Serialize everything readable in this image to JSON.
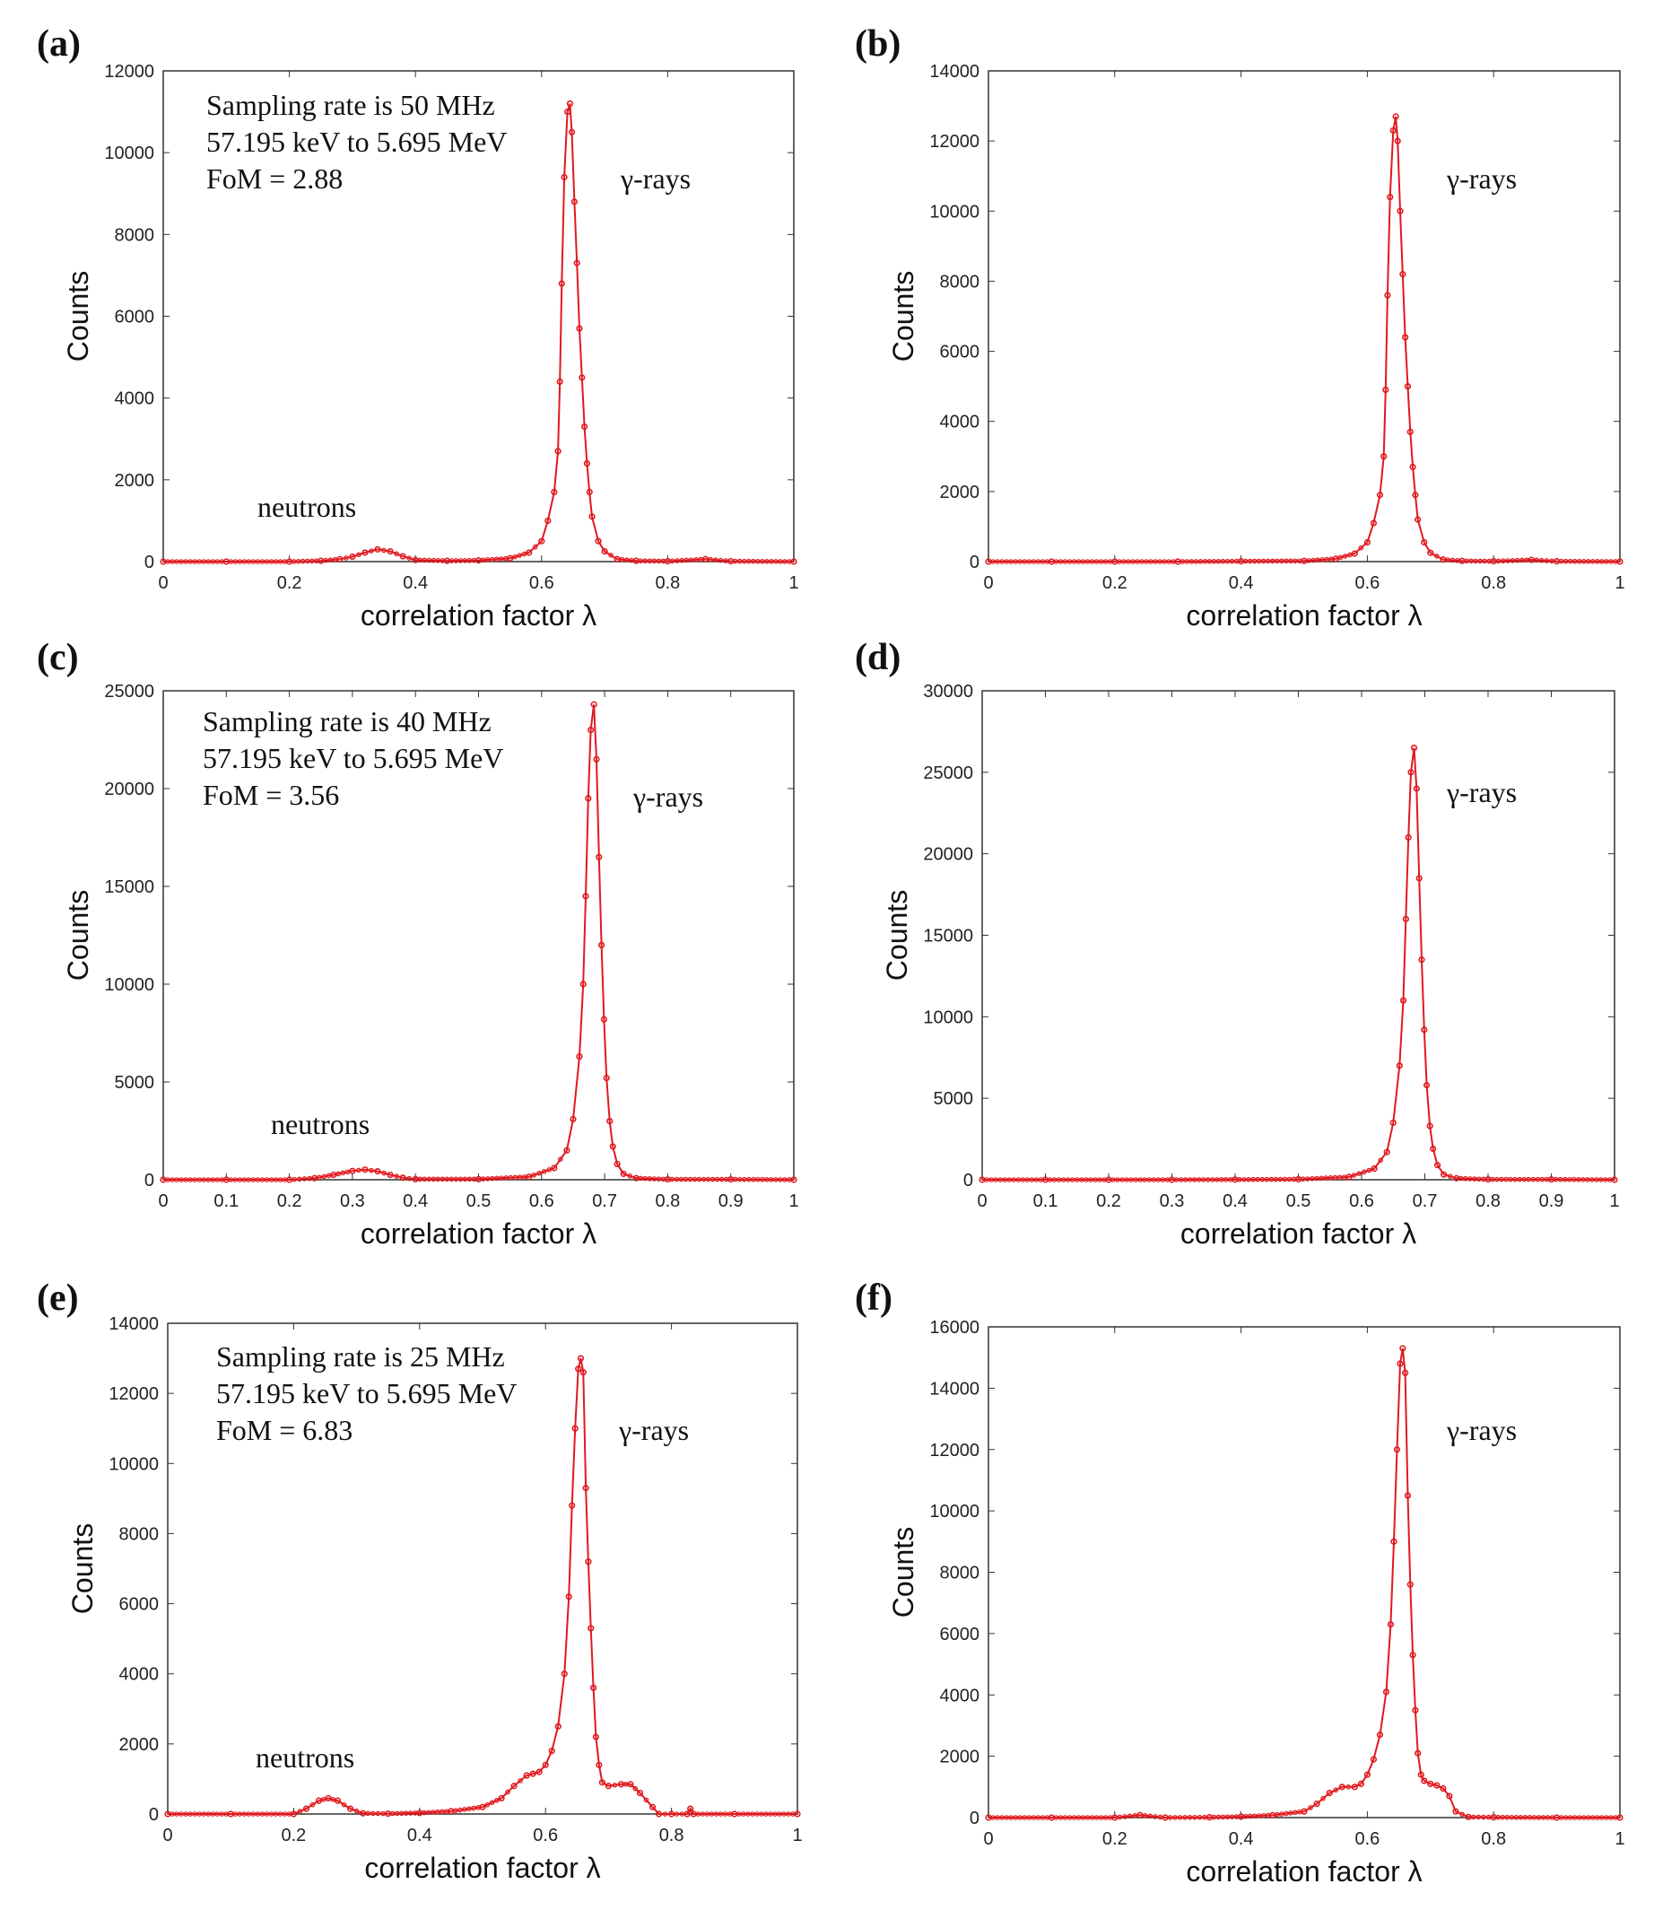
{
  "chart_data": [
    {
      "panel_label": "(a)",
      "type": "line",
      "xlabel": "correlation factor λ",
      "ylabel": "Counts",
      "xlim": [
        0,
        1
      ],
      "ylim": [
        0,
        12000
      ],
      "xticks": [
        "0",
        "0.2",
        "0.4",
        "0.6",
        "0.8",
        "1"
      ],
      "yticks": [
        "0",
        "2000",
        "4000",
        "6000",
        "8000",
        "10000",
        "12000"
      ],
      "annotations": {
        "info": [
          "Sampling rate is 50 MHz",
          "57.195 keV to 5.695 MeV",
          "FoM = 2.88"
        ],
        "neutrons": "neutrons",
        "gamma": "γ-rays"
      },
      "color": "#e0191e",
      "x": [
        0,
        0.1,
        0.2,
        0.25,
        0.28,
        0.3,
        0.32,
        0.34,
        0.36,
        0.38,
        0.4,
        0.45,
        0.5,
        0.55,
        0.58,
        0.6,
        0.61,
        0.62,
        0.626,
        0.629,
        0.632,
        0.636,
        0.641,
        0.645,
        0.648,
        0.652,
        0.656,
        0.66,
        0.664,
        0.668,
        0.672,
        0.676,
        0.68,
        0.69,
        0.7,
        0.72,
        0.75,
        0.8,
        0.86,
        0.9,
        1
      ],
      "y": [
        0,
        0,
        0,
        20,
        60,
        120,
        220,
        300,
        250,
        130,
        40,
        20,
        30,
        80,
        220,
        500,
        1000,
        1700,
        2700,
        4400,
        6800,
        9400,
        11000,
        11200,
        10500,
        8800,
        7300,
        5700,
        4500,
        3300,
        2400,
        1700,
        1100,
        500,
        250,
        60,
        20,
        10,
        60,
        10,
        0
      ]
    },
    {
      "panel_label": "(b)",
      "type": "line",
      "xlabel": "correlation factor λ",
      "ylabel": "Counts",
      "xlim": [
        0,
        1
      ],
      "ylim": [
        0,
        14000
      ],
      "xticks": [
        "0",
        "0.2",
        "0.4",
        "0.6",
        "0.8",
        "1"
      ],
      "yticks": [
        "0",
        "2000",
        "4000",
        "6000",
        "8000",
        "10000",
        "12000",
        "14000"
      ],
      "annotations": {
        "gamma": "γ-rays"
      },
      "color": "#e0191e",
      "x": [
        0,
        0.1,
        0.2,
        0.3,
        0.4,
        0.5,
        0.55,
        0.58,
        0.6,
        0.61,
        0.62,
        0.626,
        0.629,
        0.632,
        0.636,
        0.641,
        0.645,
        0.648,
        0.652,
        0.656,
        0.66,
        0.664,
        0.668,
        0.672,
        0.676,
        0.68,
        0.69,
        0.7,
        0.72,
        0.75,
        0.8,
        0.86,
        0.9,
        1
      ],
      "y": [
        0,
        0,
        0,
        0,
        10,
        20,
        80,
        230,
        550,
        1100,
        1900,
        3000,
        4900,
        7600,
        10400,
        12300,
        12700,
        12000,
        10000,
        8200,
        6400,
        5000,
        3700,
        2700,
        1900,
        1200,
        550,
        250,
        60,
        20,
        10,
        50,
        10,
        0
      ]
    },
    {
      "panel_label": "(c)",
      "type": "line",
      "xlabel": "correlation factor λ",
      "ylabel": "Counts",
      "xlim": [
        0,
        1
      ],
      "ylim": [
        0,
        25000
      ],
      "xticks": [
        "0",
        "0.1",
        "0.2",
        "0.3",
        "0.4",
        "0.5",
        "0.6",
        "0.7",
        "0.8",
        "0.9",
        "1"
      ],
      "yticks": [
        "0",
        "5000",
        "10000",
        "15000",
        "20000",
        "25000"
      ],
      "annotations": {
        "info": [
          "Sampling rate is 40 MHz",
          "57.195 keV to 5.695 MeV",
          "FoM = 3.56"
        ],
        "neutrons": "neutrons",
        "gamma": "γ-rays"
      },
      "color": "#e0191e",
      "x": [
        0,
        0.1,
        0.2,
        0.24,
        0.27,
        0.3,
        0.32,
        0.34,
        0.36,
        0.38,
        0.4,
        0.5,
        0.58,
        0.62,
        0.64,
        0.65,
        0.66,
        0.666,
        0.67,
        0.674,
        0.678,
        0.683,
        0.687,
        0.691,
        0.695,
        0.699,
        0.703,
        0.708,
        0.713,
        0.72,
        0.73,
        0.75,
        0.8,
        0.9,
        1
      ],
      "y": [
        0,
        0,
        0,
        80,
        250,
        450,
        520,
        430,
        250,
        100,
        30,
        30,
        150,
        600,
        1500,
        3100,
        6300,
        10000,
        14500,
        19500,
        23000,
        24300,
        21500,
        16500,
        12000,
        8200,
        5200,
        3000,
        1700,
        800,
        300,
        80,
        20,
        20,
        0
      ]
    },
    {
      "panel_label": "(d)",
      "type": "line",
      "xlabel": "correlation factor λ",
      "ylabel": "Counts",
      "xlim": [
        0,
        1
      ],
      "ylim": [
        0,
        30000
      ],
      "xticks": [
        "0",
        "0.1",
        "0.2",
        "0.3",
        "0.4",
        "0.5",
        "0.6",
        "0.7",
        "0.8",
        "0.9",
        "1"
      ],
      "yticks": [
        "0",
        "5000",
        "10000",
        "15000",
        "20000",
        "25000",
        "30000"
      ],
      "annotations": {
        "gamma": "γ-rays"
      },
      "color": "#e0191e",
      "x": [
        0,
        0.1,
        0.2,
        0.3,
        0.4,
        0.5,
        0.58,
        0.62,
        0.64,
        0.65,
        0.66,
        0.666,
        0.67,
        0.674,
        0.678,
        0.683,
        0.687,
        0.691,
        0.695,
        0.699,
        0.703,
        0.708,
        0.713,
        0.72,
        0.73,
        0.75,
        0.8,
        0.9,
        1
      ],
      "y": [
        0,
        0,
        0,
        0,
        10,
        30,
        170,
        680,
        1700,
        3500,
        7000,
        11000,
        16000,
        21000,
        25000,
        26500,
        24000,
        18500,
        13500,
        9200,
        5800,
        3300,
        1900,
        900,
        320,
        90,
        20,
        20,
        0
      ]
    },
    {
      "panel_label": "(e)",
      "type": "line",
      "xlabel": "correlation factor λ",
      "ylabel": "Counts",
      "xlim": [
        0,
        1
      ],
      "ylim": [
        0,
        14000
      ],
      "xticks": [
        "0",
        "0.2",
        "0.4",
        "0.6",
        "0.8",
        "1"
      ],
      "yticks": [
        "0",
        "2000",
        "4000",
        "6000",
        "8000",
        "10000",
        "12000",
        "14000"
      ],
      "annotations": {
        "info": [
          "Sampling rate is 25 MHz",
          "57.195 keV to 5.695 MeV",
          "FoM = 6.83"
        ],
        "neutrons": "neutrons",
        "gamma": "γ-rays"
      },
      "color": "#e0191e",
      "x": [
        0,
        0.1,
        0.2,
        0.22,
        0.24,
        0.255,
        0.27,
        0.29,
        0.31,
        0.35,
        0.4,
        0.45,
        0.5,
        0.53,
        0.55,
        0.57,
        0.58,
        0.59,
        0.6,
        0.61,
        0.62,
        0.63,
        0.637,
        0.642,
        0.647,
        0.652,
        0.656,
        0.66,
        0.664,
        0.668,
        0.672,
        0.676,
        0.68,
        0.685,
        0.69,
        0.7,
        0.72,
        0.735,
        0.75,
        0.77,
        0.78,
        0.8,
        0.825,
        0.83,
        0.835,
        0.9,
        1
      ],
      "y": [
        0,
        0,
        0,
        150,
        380,
        450,
        380,
        150,
        20,
        10,
        30,
        80,
        200,
        450,
        800,
        1100,
        1150,
        1200,
        1400,
        1800,
        2500,
        4000,
        6200,
        8800,
        11000,
        12700,
        13000,
        12600,
        9300,
        7200,
        5300,
        3600,
        2200,
        1400,
        900,
        800,
        850,
        850,
        600,
        200,
        0,
        0,
        0,
        150,
        0,
        0,
        0
      ]
    },
    {
      "panel_label": "(f)",
      "type": "line",
      "xlabel": "correlation factor λ",
      "ylabel": "Counts",
      "xlim": [
        0,
        1
      ],
      "ylim": [
        0,
        16000
      ],
      "xticks": [
        "0",
        "0.2",
        "0.4",
        "0.6",
        "0.8",
        "1"
      ],
      "yticks": [
        "0",
        "2000",
        "4000",
        "6000",
        "8000",
        "10000",
        "12000",
        "14000",
        "16000"
      ],
      "annotations": {
        "gamma": "γ-rays"
      },
      "color": "#e0191e",
      "x": [
        0,
        0.1,
        0.2,
        0.24,
        0.28,
        0.35,
        0.4,
        0.45,
        0.5,
        0.52,
        0.54,
        0.56,
        0.58,
        0.59,
        0.6,
        0.61,
        0.62,
        0.63,
        0.637,
        0.642,
        0.647,
        0.652,
        0.656,
        0.66,
        0.664,
        0.668,
        0.672,
        0.676,
        0.68,
        0.685,
        0.69,
        0.7,
        0.71,
        0.72,
        0.73,
        0.74,
        0.76,
        0.8,
        0.9,
        1
      ],
      "y": [
        0,
        0,
        0,
        80,
        0,
        10,
        30,
        80,
        200,
        450,
        800,
        1000,
        1000,
        1100,
        1400,
        1900,
        2700,
        4100,
        6300,
        9000,
        12000,
        14800,
        15300,
        14500,
        10500,
        7600,
        5300,
        3500,
        2100,
        1400,
        1200,
        1100,
        1050,
        950,
        700,
        200,
        20,
        10,
        0,
        0
      ]
    }
  ]
}
